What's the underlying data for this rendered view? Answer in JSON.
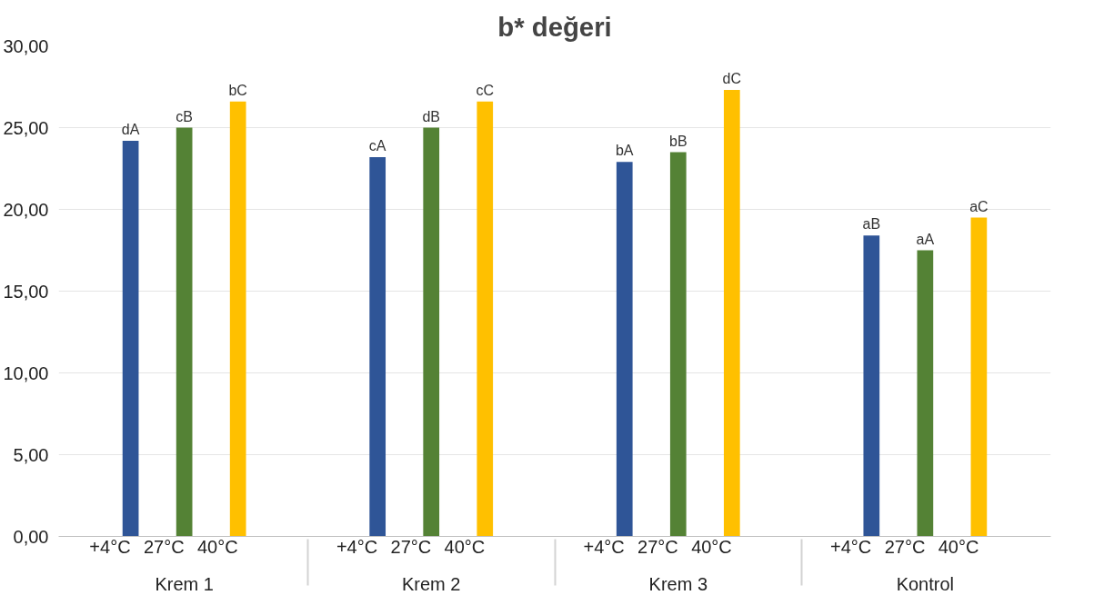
{
  "chart_data": {
    "type": "bar",
    "title": "b* değeri",
    "categories": [
      "Krem 1",
      "Krem 2",
      "Krem 3",
      "Kontrol"
    ],
    "series": [
      {
        "name": "+4°C",
        "color": "#2f5597",
        "values": [
          24.2,
          23.2,
          22.9,
          18.4
        ],
        "value_labels": [
          "dA",
          "cA",
          "bA",
          "aB"
        ]
      },
      {
        "name": "27°C",
        "color": "#548235",
        "values": [
          25.0,
          25.0,
          23.5,
          17.5
        ],
        "value_labels": [
          "cB",
          "dB",
          "bB",
          "aA"
        ]
      },
      {
        "name": "40°C",
        "color": "#ffc000",
        "values": [
          26.6,
          26.6,
          27.3,
          19.5
        ],
        "value_labels": [
          "bC",
          "cC",
          "dC",
          "aC"
        ]
      }
    ],
    "ylim": [
      0,
      30
    ],
    "yticks": [
      {
        "value": 0,
        "label": "0,00"
      },
      {
        "value": 5,
        "label": "5,00"
      },
      {
        "value": 10,
        "label": "10,00"
      },
      {
        "value": 15,
        "label": "15,00"
      },
      {
        "value": 20,
        "label": "20,00"
      },
      {
        "value": 25,
        "label": "25,00"
      },
      {
        "value": 30,
        "label": "30,00"
      }
    ],
    "grid": "y"
  }
}
